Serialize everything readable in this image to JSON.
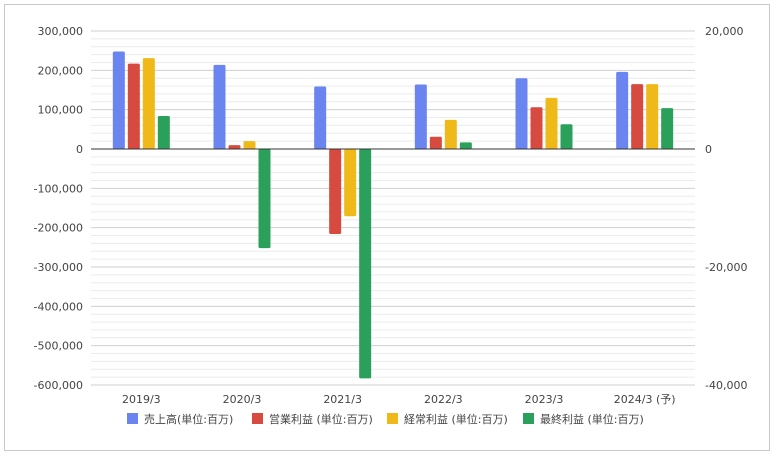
{
  "chart_data": {
    "type": "bar",
    "categories": [
      "2019/3",
      "2020/3",
      "2021/3",
      "2022/3",
      "2023/3",
      "2024/3 (予)"
    ],
    "series": [
      {
        "name": "売上高(単位:百万)",
        "color": "#6a84f0",
        "values": [
          248000,
          214000,
          159000,
          164000,
          180000,
          196000
        ]
      },
      {
        "name": "営業利益 (単位:百万)",
        "color": "#d64a3f",
        "values": [
          217000,
          10000,
          -216000,
          31000,
          106000,
          165000
        ]
      },
      {
        "name": "経常利益 (単位:百万)",
        "color": "#f0b91a",
        "values": [
          231000,
          20000,
          -171000,
          74000,
          130000,
          165000
        ]
      },
      {
        "name": "最終利益 (単位:百万)",
        "color": "#2aa05a",
        "values": [
          84000,
          -252000,
          -583000,
          17000,
          63000,
          104000
        ]
      }
    ],
    "ylim": [
      -600000,
      300000
    ],
    "y_ticks": [
      "300,000",
      "200,000",
      "100,000",
      "0",
      "-100,000",
      "-200,000",
      "-300,000",
      "-400,000",
      "-500,000",
      "-600,000"
    ],
    "y_tick_values": [
      300000,
      200000,
      100000,
      0,
      -100000,
      -200000,
      -300000,
      -400000,
      -500000,
      -600000
    ],
    "y2lim": [
      -40000,
      20000
    ],
    "y2_ticks": [
      "20,000",
      "0",
      "-20,000",
      "-40,000"
    ],
    "y2_tick_values": [
      20000,
      0,
      -20000,
      -40000
    ],
    "grid": true,
    "legend_position": "bottom"
  }
}
